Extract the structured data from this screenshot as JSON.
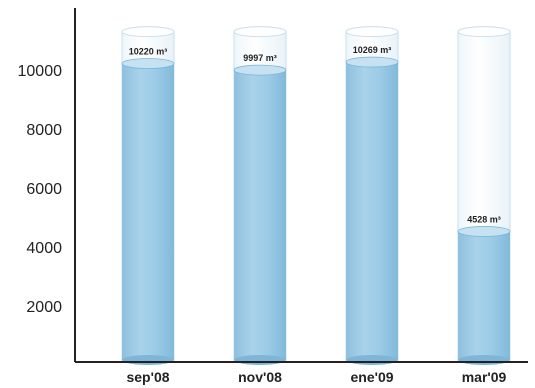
{
  "chart_data": {
    "type": "bar",
    "categories": [
      "sep'08",
      "nov'08",
      "ene'09",
      "mar'09"
    ],
    "values": [
      10220,
      9997,
      10269,
      4528
    ],
    "data_labels": [
      "10220 m³",
      "9997 m³",
      "10269 m³",
      "4528 m³"
    ],
    "title": "",
    "xlabel": "",
    "ylabel": "",
    "yticks": [
      2000,
      4000,
      6000,
      8000,
      10000
    ],
    "ylim": [
      0,
      11300
    ],
    "capacity": 11300,
    "grid": false,
    "legend": "none",
    "colors": {
      "fill": "#9ecbe6",
      "fill_dark": "#7fb6d8",
      "tube": "#f4fafd",
      "tube_outline": "#c8dfec",
      "axis": "#222222"
    }
  }
}
